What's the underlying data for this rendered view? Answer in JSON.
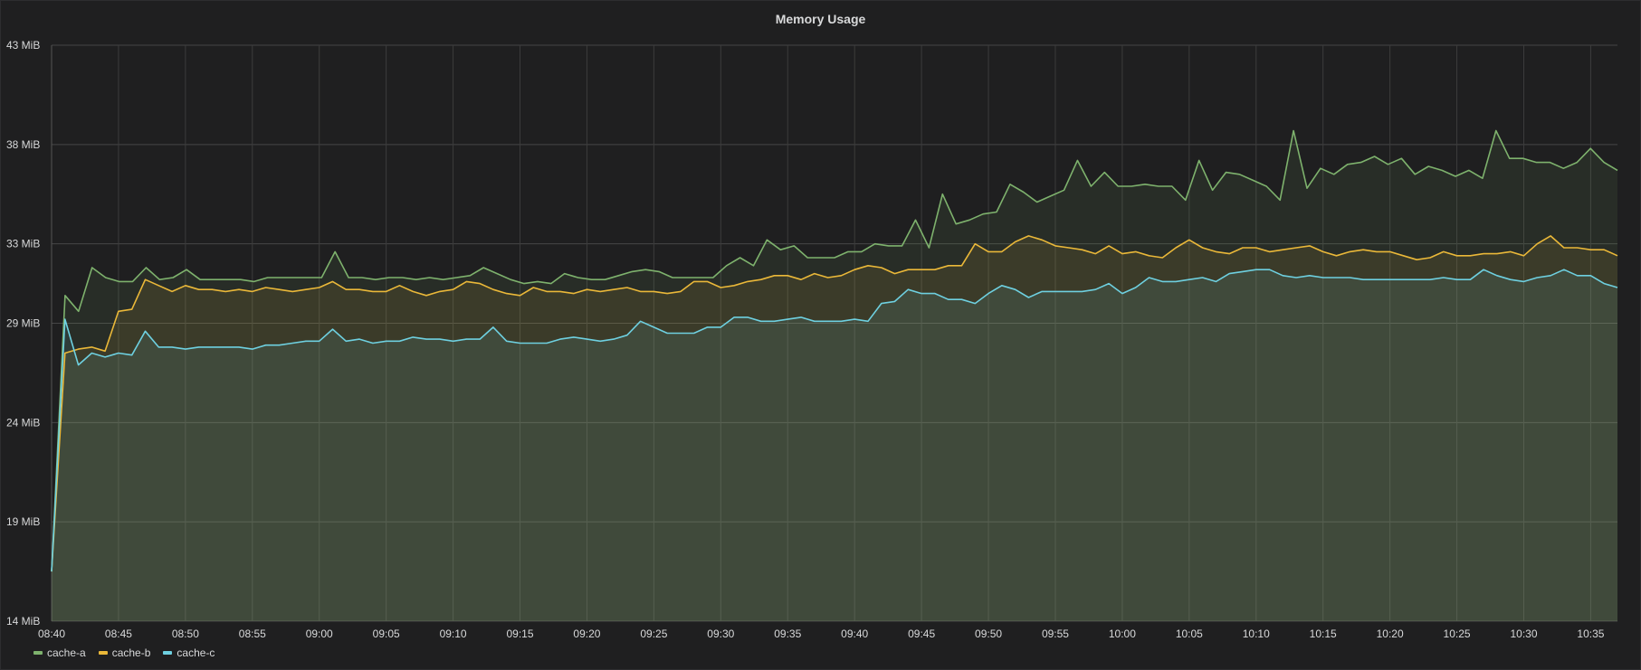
{
  "panel": {
    "title": "Memory Usage"
  },
  "chart_data": {
    "type": "area",
    "title": "Memory Usage",
    "unit": "MiB",
    "xlabel": "",
    "ylabel": "",
    "ylim": [
      14,
      43
    ],
    "y_ticks": [
      "14 MiB",
      "19 MiB",
      "24 MiB",
      "29 MiB",
      "33 MiB",
      "38 MiB",
      "43 MiB"
    ],
    "y_tick_values": [
      14,
      19,
      24,
      29,
      33,
      38,
      43
    ],
    "x_ticks": [
      "08:40",
      "08:45",
      "08:50",
      "08:55",
      "09:00",
      "09:05",
      "09:10",
      "09:15",
      "09:20",
      "09:25",
      "09:30",
      "09:35",
      "09:40",
      "09:45",
      "09:50",
      "09:55",
      "10:00",
      "10:05",
      "10:10",
      "10:15",
      "10:20",
      "10:25",
      "10:30",
      "10:35"
    ],
    "x_start": "08:40",
    "x_end": "10:37",
    "grid": true,
    "legend": "bottom-left",
    "series": [
      {
        "name": "cache-a",
        "color": "#7eb26d",
        "values": [
          16.5,
          30.4,
          29.6,
          31.8,
          31.3,
          31.1,
          31.1,
          31.8,
          31.2,
          31.3,
          31.7,
          31.2,
          31.2,
          31.2,
          31.2,
          31.1,
          31.3,
          31.3,
          31.3,
          31.3,
          31.3,
          32.6,
          31.3,
          31.3,
          31.2,
          31.3,
          31.3,
          31.2,
          31.3,
          31.2,
          31.3,
          31.4,
          31.8,
          31.5,
          31.2,
          31.0,
          31.1,
          31.0,
          31.5,
          31.3,
          31.2,
          31.2,
          31.4,
          31.6,
          31.7,
          31.6,
          31.3,
          31.3,
          31.3,
          31.3,
          31.9,
          32.3,
          31.9,
          33.2,
          32.7,
          32.9,
          32.3,
          32.3,
          32.3,
          32.6,
          32.6,
          33.0,
          32.9,
          32.9,
          34.2,
          32.8,
          35.5,
          34.0,
          34.2,
          34.5,
          34.6,
          36.0,
          35.6,
          35.1,
          35.4,
          35.7,
          37.2,
          35.9,
          36.6,
          35.9,
          35.9,
          36.0,
          35.9,
          35.9,
          35.2,
          37.2,
          35.7,
          36.6,
          36.5,
          36.2,
          35.9,
          35.2,
          38.7,
          35.8,
          36.8,
          36.5,
          37.0,
          37.1,
          37.4,
          37.0,
          37.3,
          36.5,
          36.9,
          36.7,
          36.4,
          36.7,
          36.3,
          38.7,
          37.3,
          37.3,
          37.1,
          37.1,
          36.8,
          37.1,
          37.8,
          37.1,
          36.7
        ]
      },
      {
        "name": "cache-b",
        "color": "#eab839",
        "values": [
          16.5,
          27.5,
          27.7,
          27.8,
          27.6,
          29.6,
          29.7,
          31.2,
          30.9,
          30.6,
          30.9,
          30.7,
          30.7,
          30.6,
          30.7,
          30.6,
          30.8,
          30.7,
          30.6,
          30.7,
          30.8,
          31.1,
          30.7,
          30.7,
          30.6,
          30.6,
          30.9,
          30.6,
          30.4,
          30.6,
          30.7,
          31.1,
          31.0,
          30.7,
          30.5,
          30.4,
          30.8,
          30.6,
          30.6,
          30.5,
          30.7,
          30.6,
          30.7,
          30.8,
          30.6,
          30.6,
          30.5,
          30.6,
          31.1,
          31.1,
          30.8,
          30.9,
          31.1,
          31.2,
          31.4,
          31.4,
          31.2,
          31.5,
          31.3,
          31.4,
          31.7,
          31.9,
          31.8,
          31.5,
          31.7,
          31.7,
          31.7,
          31.9,
          31.9,
          33.0,
          32.6,
          32.6,
          33.1,
          33.4,
          33.2,
          32.9,
          32.8,
          32.7,
          32.5,
          32.9,
          32.5,
          32.6,
          32.4,
          32.3,
          32.8,
          33.2,
          32.8,
          32.6,
          32.5,
          32.8,
          32.8,
          32.6,
          32.7,
          32.8,
          32.9,
          32.6,
          32.4,
          32.6,
          32.7,
          32.6,
          32.6,
          32.4,
          32.2,
          32.3,
          32.6,
          32.4,
          32.4,
          32.5,
          32.5,
          32.6,
          32.4,
          33.0,
          33.4,
          32.8,
          32.8,
          32.7,
          32.7,
          32.4
        ]
      },
      {
        "name": "cache-c",
        "color": "#6ed0e0",
        "values": [
          16.5,
          29.2,
          26.9,
          27.5,
          27.3,
          27.5,
          27.4,
          28.6,
          27.8,
          27.8,
          27.7,
          27.8,
          27.8,
          27.8,
          27.8,
          27.7,
          27.9,
          27.9,
          28.0,
          28.1,
          28.1,
          28.7,
          28.1,
          28.2,
          28.0,
          28.1,
          28.1,
          28.3,
          28.2,
          28.2,
          28.1,
          28.2,
          28.2,
          28.8,
          28.1,
          28.0,
          28.0,
          28.0,
          28.2,
          28.3,
          28.2,
          28.1,
          28.2,
          28.4,
          29.1,
          28.8,
          28.5,
          28.5,
          28.5,
          28.8,
          28.8,
          29.3,
          29.3,
          29.1,
          29.1,
          29.2,
          29.3,
          29.1,
          29.1,
          29.1,
          29.2,
          29.1,
          30.0,
          30.1,
          30.7,
          30.5,
          30.5,
          30.2,
          30.2,
          30.0,
          30.5,
          30.9,
          30.7,
          30.3,
          30.6,
          30.6,
          30.6,
          30.6,
          30.7,
          31.0,
          30.5,
          30.8,
          31.3,
          31.1,
          31.1,
          31.2,
          31.3,
          31.1,
          31.5,
          31.6,
          31.7,
          31.7,
          31.4,
          31.3,
          31.4,
          31.3,
          31.3,
          31.3,
          31.2,
          31.2,
          31.2,
          31.2,
          31.2,
          31.2,
          31.3,
          31.2,
          31.2,
          31.7,
          31.4,
          31.2,
          31.1,
          31.3,
          31.4,
          31.7,
          31.4,
          31.4,
          31.0,
          30.8
        ]
      }
    ]
  }
}
